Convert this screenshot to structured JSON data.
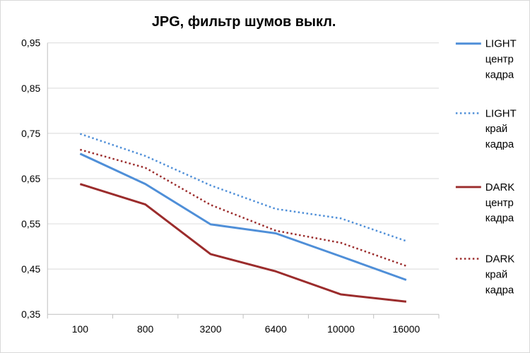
{
  "chart_data": {
    "type": "line",
    "title": "JPG, фильтр шумов выкл.",
    "xlabel": "",
    "ylabel": "",
    "categories": [
      "100",
      "800",
      "3200",
      "6400",
      "10000",
      "16000"
    ],
    "ylim": [
      0.35,
      0.95
    ],
    "yticks": [
      {
        "value": 0.35,
        "label": "0,35"
      },
      {
        "value": 0.45,
        "label": "0,45"
      },
      {
        "value": 0.55,
        "label": "0,55"
      },
      {
        "value": 0.65,
        "label": "0,65"
      },
      {
        "value": 0.75,
        "label": "0,75"
      },
      {
        "value": 0.85,
        "label": "0,85"
      },
      {
        "value": 0.95,
        "label": "0,95"
      }
    ],
    "grid": true,
    "legend_position": "right",
    "series": [
      {
        "name": "LIGHT центр кадра",
        "legend_lines": [
          "LIGHT",
          "центр",
          "кадра"
        ],
        "color": "#4f8fd8",
        "style": "solid",
        "values": [
          0.705,
          0.638,
          0.549,
          0.529,
          0.478,
          0.426
        ]
      },
      {
        "name": "LIGHT край кадра",
        "legend_lines": [
          "LIGHT",
          "край",
          "кадра"
        ],
        "color": "#4f8fd8",
        "style": "dotted",
        "values": [
          0.749,
          0.7,
          0.635,
          0.583,
          0.562,
          0.512
        ]
      },
      {
        "name": "DARK центр кадра",
        "legend_lines": [
          "DARK",
          "центр",
          "кадра"
        ],
        "color": "#9b2c2c",
        "style": "solid",
        "values": [
          0.638,
          0.593,
          0.483,
          0.445,
          0.394,
          0.378
        ]
      },
      {
        "name": "DARK край кадра",
        "legend_lines": [
          "DARK",
          "край",
          "кадра"
        ],
        "color": "#9b2c2c",
        "style": "dotted",
        "values": [
          0.714,
          0.674,
          0.592,
          0.535,
          0.508,
          0.457
        ]
      }
    ]
  }
}
